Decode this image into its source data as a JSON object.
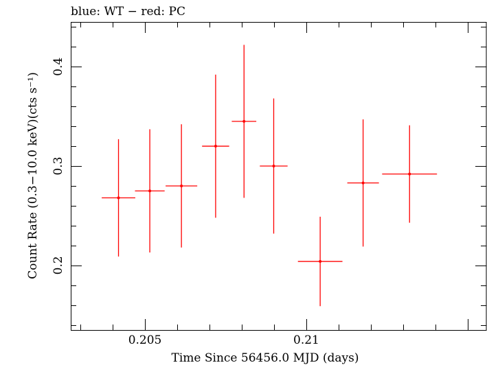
{
  "chart_data": {
    "type": "scatter",
    "title": "blue: WT − red: PC",
    "xlabel": "Time Since 56456.0 MJD (days)",
    "ylabel": "Count Rate (0.3−10.0 keV)(cts s⁻¹)",
    "xlim": [
      0.2027,
      0.2156
    ],
    "ylim": [
      0.135,
      0.445
    ],
    "x_ticks": [
      {
        "value": 0.205,
        "label": "0.205"
      },
      {
        "value": 0.21,
        "label": "0.21"
      }
    ],
    "y_ticks": [
      {
        "value": 0.2,
        "label": "0.2"
      },
      {
        "value": 0.3,
        "label": "0.3"
      },
      {
        "value": 0.4,
        "label": "0.4"
      }
    ],
    "series": [
      {
        "name": "PC",
        "color": "#ff0000",
        "points": [
          {
            "x": 0.20418,
            "xerr": 0.00052,
            "y": 0.268,
            "yerr": 0.059
          },
          {
            "x": 0.20515,
            "xerr": 0.00046,
            "y": 0.275,
            "yerr": 0.062
          },
          {
            "x": 0.20613,
            "xerr": 0.00049,
            "y": 0.28,
            "yerr": 0.062
          },
          {
            "x": 0.20719,
            "xerr": 0.00042,
            "y": 0.32,
            "yerr": 0.072
          },
          {
            "x": 0.20807,
            "xerr": 0.00038,
            "y": 0.345,
            "yerr": 0.077
          },
          {
            "x": 0.20899,
            "xerr": 0.00043,
            "y": 0.3,
            "yerr": 0.068
          },
          {
            "x": 0.21043,
            "xerr": 0.00069,
            "y": 0.204,
            "yerr": 0.045
          },
          {
            "x": 0.21176,
            "xerr": 0.00049,
            "y": 0.283,
            "yerr": 0.064
          },
          {
            "x": 0.2132,
            "xerr": 0.00085,
            "y": 0.292,
            "yerr": 0.049
          }
        ]
      }
    ]
  }
}
